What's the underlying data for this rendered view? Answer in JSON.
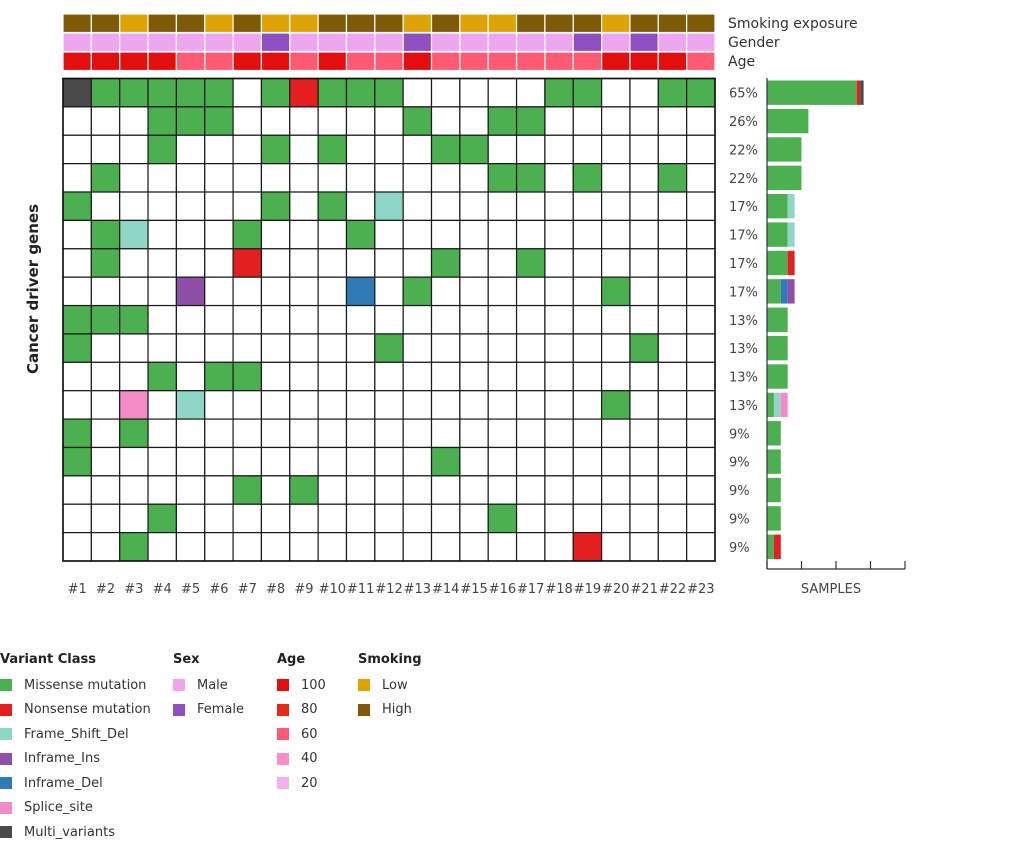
{
  "chart_data": {
    "type": "heatmap",
    "subtype": "oncoprint",
    "y_axis_title": "Cancer driver genes",
    "bar_axis_title": "SAMPLES",
    "samples": [
      "#1",
      "#2",
      "#3",
      "#4",
      "#5",
      "#6",
      "#7",
      "#8",
      "#9",
      "#10",
      "#11",
      "#12",
      "#13",
      "#14",
      "#15",
      "#16",
      "#17",
      "#18",
      "#19",
      "#20",
      "#21",
      "#22",
      "#23"
    ],
    "track_labels": [
      "Smoking exposure",
      "Gender",
      "Age"
    ],
    "tracks": {
      "smoking": [
        "H",
        "H",
        "L",
        "H",
        "H",
        "L",
        "H",
        "L",
        "L",
        "H",
        "H",
        "H",
        "L",
        "H",
        "L",
        "L",
        "H",
        "H",
        "H",
        "L",
        "H",
        "H",
        "H"
      ],
      "gender": [
        "M",
        "M",
        "M",
        "M",
        "M",
        "M",
        "M",
        "F",
        "M",
        "M",
        "M",
        "M",
        "F",
        "M",
        "M",
        "M",
        "M",
        "M",
        "F",
        "M",
        "F",
        "M",
        "M"
      ],
      "age": [
        "100",
        "100",
        "100",
        "100",
        "60",
        "60",
        "100",
        "100",
        "60",
        "100",
        "60",
        "60",
        "100",
        "60",
        "60",
        "60",
        "60",
        "60",
        "60",
        "100",
        "100",
        "100",
        "60"
      ]
    },
    "variant_codes": {
      "G": "Missense mutation",
      "R": "Nonsense mutation",
      "T": "Frame_Shift_Del",
      "P": "Inframe_Ins",
      "B": "Inframe_Del",
      "S": "Splice_site",
      "K": "Multi_variants"
    },
    "rows": [
      {
        "pct": "65%",
        "cells": "KGGGGG.GRGGG.....GG..GG",
        "bar": [
          [
            "G",
            13
          ],
          [
            "R",
            0.5
          ],
          [
            "K",
            0.5
          ]
        ]
      },
      {
        "pct": "26%",
        "cells": "...GGG......G..GG......",
        "bar": [
          [
            "G",
            6
          ]
        ]
      },
      {
        "pct": "22%",
        "cells": "...G...G.G...GG........",
        "bar": [
          [
            "G",
            5
          ]
        ]
      },
      {
        "pct": "22%",
        "cells": ".G.............GG.G..G.",
        "bar": [
          [
            "G",
            5
          ]
        ]
      },
      {
        "pct": "17%",
        "cells": "G......G.G.T...........",
        "bar": [
          [
            "G",
            3
          ],
          [
            "T",
            1
          ]
        ]
      },
      {
        "pct": "17%",
        "cells": ".GT...G...G............",
        "bar": [
          [
            "G",
            3
          ],
          [
            "T",
            1
          ]
        ]
      },
      {
        "pct": "17%",
        "cells": ".G....R......G..G......",
        "bar": [
          [
            "G",
            3
          ],
          [
            "R",
            1
          ]
        ]
      },
      {
        "pct": "17%",
        "cells": "....P.....B.G......G...",
        "bar": [
          [
            "G",
            2
          ],
          [
            "B",
            1
          ],
          [
            "P",
            1
          ]
        ]
      },
      {
        "pct": "13%",
        "cells": "GGG....................",
        "bar": [
          [
            "G",
            3
          ]
        ]
      },
      {
        "pct": "13%",
        "cells": "G..........G........G..",
        "bar": [
          [
            "G",
            3
          ]
        ]
      },
      {
        "pct": "13%",
        "cells": "...G.GG................",
        "bar": [
          [
            "G",
            3
          ]
        ]
      },
      {
        "pct": "13%",
        "cells": "..S.T..............G...",
        "bar": [
          [
            "G",
            1
          ],
          [
            "T",
            1
          ],
          [
            "S",
            1
          ]
        ]
      },
      {
        "pct": "9%",
        "cells": "G.G....................",
        "bar": [
          [
            "G",
            2
          ]
        ]
      },
      {
        "pct": "9%",
        "cells": "G............G.........",
        "bar": [
          [
            "G",
            2
          ]
        ]
      },
      {
        "pct": "9%",
        "cells": "......G.G..............",
        "bar": [
          [
            "G",
            2
          ]
        ]
      },
      {
        "pct": "9%",
        "cells": "...G...........G.......",
        "bar": [
          [
            "G",
            2
          ]
        ]
      },
      {
        "pct": "9%",
        "cells": "..G...............R....",
        "bar": [
          [
            "G",
            1
          ],
          [
            "R",
            1
          ]
        ]
      }
    ],
    "bar_xlim": [
      0,
      20
    ]
  },
  "colors": {
    "G": "#4caf50",
    "R": "#e41f1f",
    "T": "#8fd6c6",
    "P": "#8e4fa8",
    "B": "#2f7bb6",
    "S": "#f48ac6",
    "K": "#4a4a4a",
    "smoking_L": "#e0a305",
    "smoking_H": "#7e5a06",
    "gender_M": "#eda6ef",
    "gender_F": "#8e4fc0",
    "age_100": "#e30f0f",
    "age_80": "#e42a18",
    "age_60": "#ff5a73",
    "age_40": "#ff8dc6",
    "age_20": "#f5b0ef"
  },
  "legend": {
    "variant": {
      "title": "Variant Class",
      "items": [
        {
          "label": "Missense mutation",
          "key": "G"
        },
        {
          "label": "Nonsense mutation",
          "key": "R"
        },
        {
          "label": "Frame_Shift_Del",
          "key": "T"
        },
        {
          "label": "Inframe_Ins",
          "key": "P"
        },
        {
          "label": "Inframe_Del",
          "key": "B"
        },
        {
          "label": "Splice_site",
          "key": "S"
        },
        {
          "label": "Multi_variants",
          "key": "K"
        }
      ]
    },
    "sex": {
      "title": "Sex",
      "items": [
        {
          "label": "Male",
          "key": "gender_M"
        },
        {
          "label": "Female",
          "key": "gender_F"
        }
      ]
    },
    "age": {
      "title": "Age",
      "items": [
        {
          "label": "100",
          "key": "age_100"
        },
        {
          "label": "80",
          "key": "age_80"
        },
        {
          "label": "60",
          "key": "age_60"
        },
        {
          "label": "40",
          "key": "age_40"
        },
        {
          "label": "20",
          "key": "age_20"
        }
      ]
    },
    "smoking": {
      "title": "Smoking",
      "items": [
        {
          "label": "Low",
          "key": "smoking_L"
        },
        {
          "label": "High",
          "key": "smoking_H"
        }
      ]
    }
  }
}
